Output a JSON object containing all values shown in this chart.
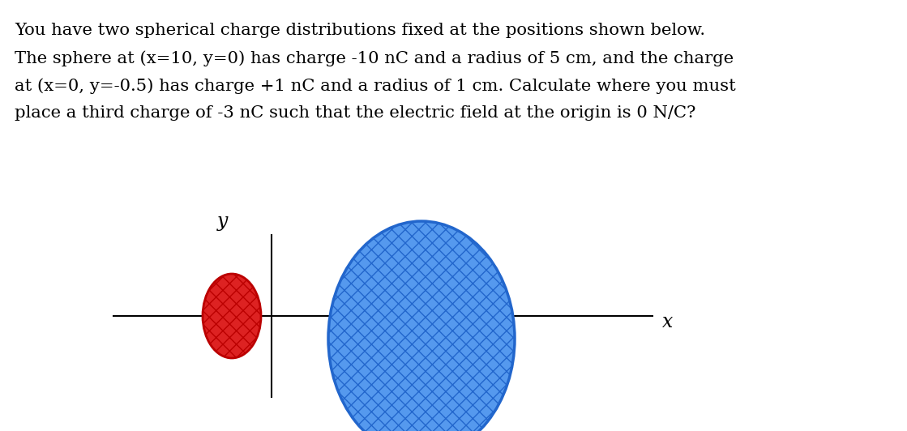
{
  "background_color": "#ffffff",
  "text_lines": [
    "You have two spherical charge distributions fixed at the positions shown below.",
    "The sphere at (x=10, y=0) has charge -10 nC and a radius of 5 cm, and the charge",
    "at (x=0, y=-0.5) has charge +1 nC and a radius of 1 cm. Calculate where you must",
    "place a third charge of -3 nC such that the electric field at the origin is 0 N/C?"
  ],
  "text_fontsize": 15.2,
  "text_color": "#000000",
  "axis_color": "#000000",
  "axis_linewidth": 1.5,
  "xlabel": "x",
  "ylabel": "y",
  "label_fontsize": 17,
  "red_color": "#dd2222",
  "red_edge": "#bb0000",
  "blue_color": "#5599ee",
  "blue_edge": "#2266cc",
  "hatch": "xx"
}
